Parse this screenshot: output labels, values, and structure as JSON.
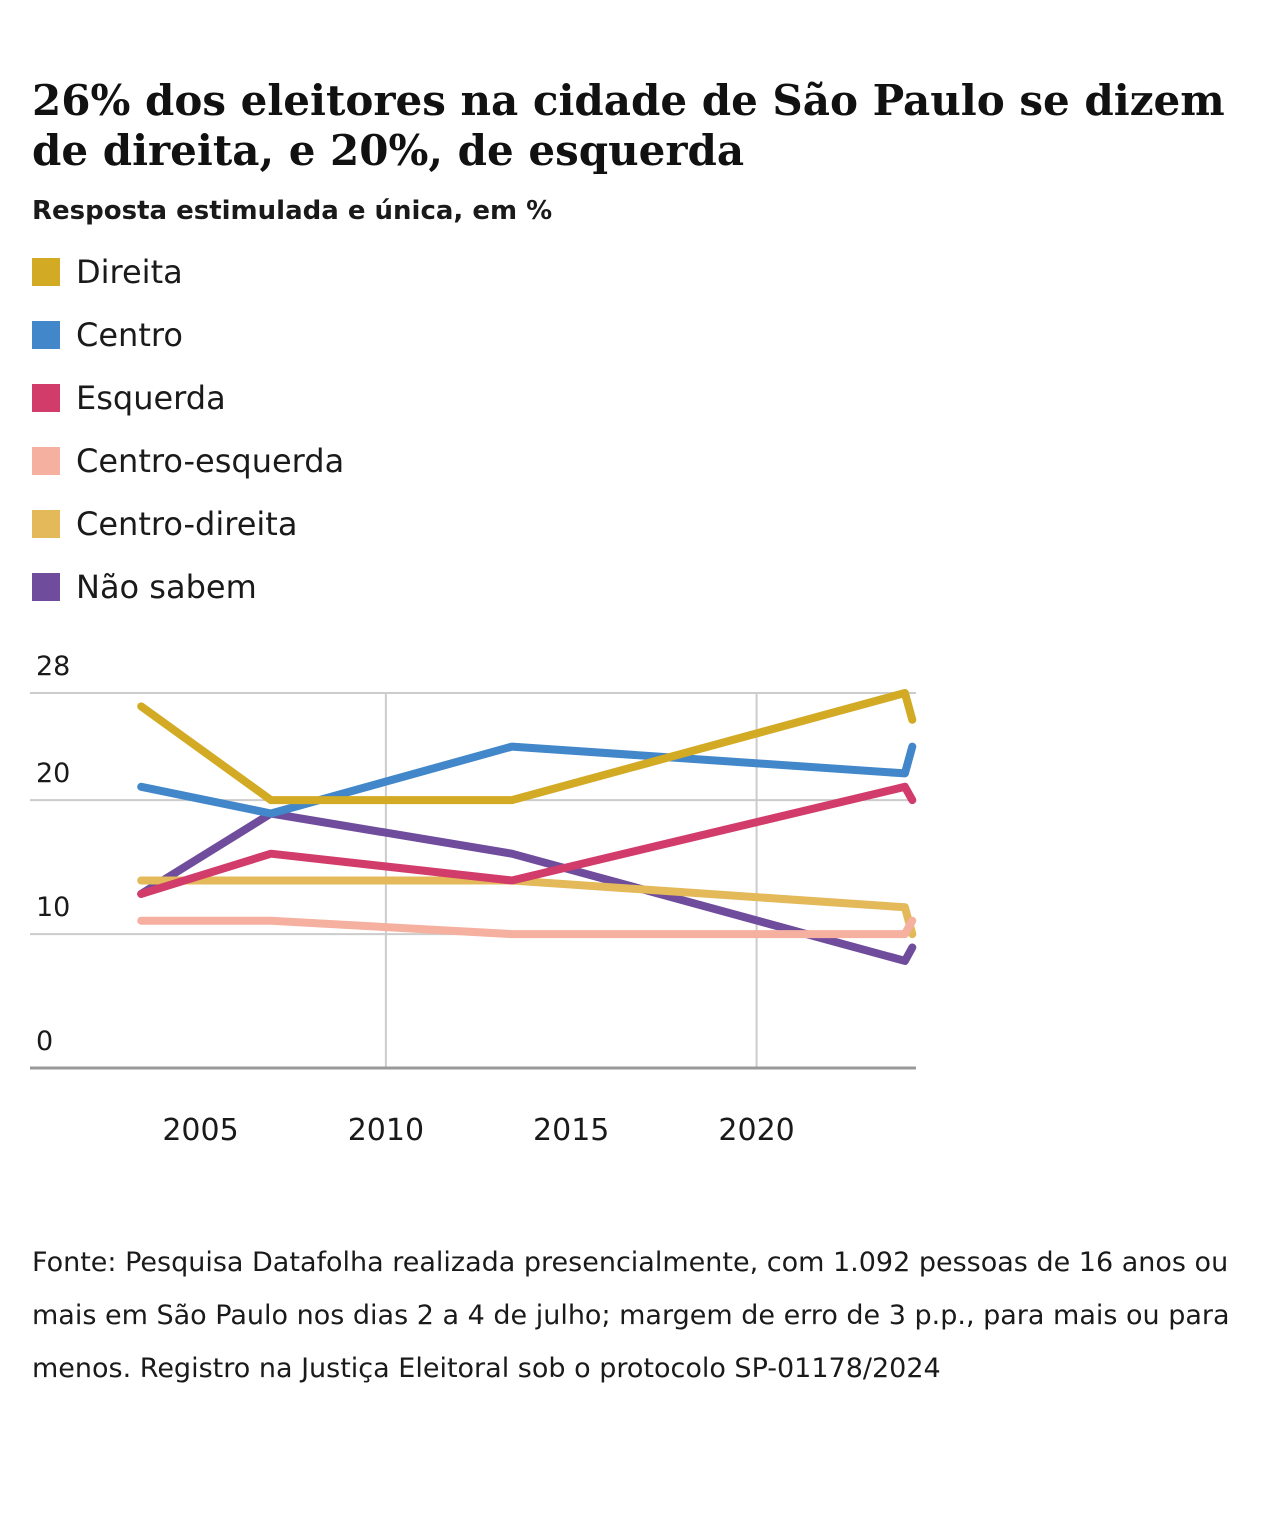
{
  "header": {
    "title": "26% dos eleitores na cidade de São Paulo se dizem de direita, e 20%, de esquerda",
    "subtitle": "Resposta estimulada e única, em %"
  },
  "footer": {
    "source": "Fonte: Pesquisa Datafolha realizada presencialmente, com 1.092 pessoas de 16 anos ou mais em São Paulo nos dias 2 a 4 de julho; margem de erro de 3 p.p., para mais ou para menos. Registro na Justiça Eleitoral sob o protocolo SP-01178/2024"
  },
  "chart_data": {
    "type": "line",
    "title": "26% dos eleitores na cidade de São Paulo se dizem de direita, e 20%, de esquerda",
    "subtitle": "Resposta estimulada e única, em %",
    "xlabel": "",
    "ylabel": "",
    "x_ticks": [
      "2005",
      "2010",
      "2015",
      "2020"
    ],
    "x_tick_values": [
      2005,
      2010,
      2015,
      2020
    ],
    "y_ticks": [
      "0",
      "10",
      "20",
      "28"
    ],
    "y_tick_values": [
      0,
      10,
      20,
      28
    ],
    "ylim": [
      0,
      28
    ],
    "xlim": [
      2000.4,
      2024.3
    ],
    "grid": true,
    "legend_position": "top-left",
    "series": [
      {
        "name": "Direita",
        "color": "#d2aa23",
        "points": [
          [
            2003.4,
            27
          ],
          [
            2006.9,
            20
          ],
          [
            2013.4,
            20
          ],
          [
            2024,
            28
          ],
          [
            2024.2,
            26
          ]
        ]
      },
      {
        "name": "Centro",
        "color": "#4187c9",
        "points": [
          [
            2003.4,
            21
          ],
          [
            2006.9,
            19
          ],
          [
            2013.4,
            24
          ],
          [
            2024,
            22
          ],
          [
            2024.2,
            24
          ]
        ]
      },
      {
        "name": "Esquerda",
        "color": "#d23c6a",
        "points": [
          [
            2003.4,
            13
          ],
          [
            2006.9,
            16
          ],
          [
            2013.4,
            14
          ],
          [
            2024,
            21
          ],
          [
            2024.2,
            20
          ]
        ]
      },
      {
        "name": "Centro-esquerda",
        "color": "#f5b0a0",
        "points": [
          [
            2003.4,
            11
          ],
          [
            2006.9,
            11
          ],
          [
            2013.4,
            10
          ],
          [
            2024,
            10
          ],
          [
            2024.2,
            11
          ]
        ]
      },
      {
        "name": "Centro-direita",
        "color": "#e3b95a",
        "points": [
          [
            2003.4,
            14
          ],
          [
            2006.9,
            14
          ],
          [
            2013.4,
            14
          ],
          [
            2024,
            12
          ],
          [
            2024.2,
            10
          ]
        ]
      },
      {
        "name": "Não sabem",
        "color": "#704c9d",
        "points": [
          [
            2003.4,
            13
          ],
          [
            2006.9,
            19
          ],
          [
            2013.4,
            16
          ],
          [
            2024,
            8
          ],
          [
            2024.2,
            9
          ]
        ]
      }
    ]
  }
}
